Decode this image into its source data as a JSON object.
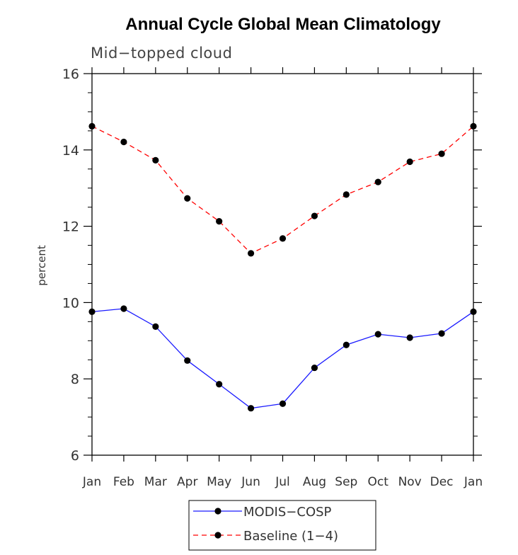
{
  "chart_data": {
    "type": "line",
    "title": "Annual Cycle Global Mean Climatology",
    "subtitle": "Mid−topped cloud",
    "xlabel": "",
    "ylabel": "percent",
    "categories": [
      "Jan",
      "Feb",
      "Mar",
      "Apr",
      "May",
      "Jun",
      "Jul",
      "Aug",
      "Sep",
      "Oct",
      "Nov",
      "Dec",
      "Jan"
    ],
    "yticks": [
      6,
      8,
      10,
      12,
      14,
      16
    ],
    "ylim": [
      6,
      16
    ],
    "grid": false,
    "legend_position": "bottom-center",
    "series": [
      {
        "name": "MODIS−COSP",
        "color": "#1a1aff",
        "dash": "solid",
        "values": [
          9.76,
          9.84,
          9.37,
          8.48,
          7.86,
          7.23,
          7.35,
          8.29,
          8.89,
          9.17,
          9.08,
          9.19,
          9.76
        ]
      },
      {
        "name": "Baseline (1−4)",
        "color": "#ff0000",
        "dash": "dashed",
        "values": [
          14.62,
          14.21,
          13.73,
          12.73,
          12.13,
          11.29,
          11.68,
          12.27,
          12.83,
          13.16,
          13.69,
          13.9,
          14.62
        ]
      }
    ]
  }
}
